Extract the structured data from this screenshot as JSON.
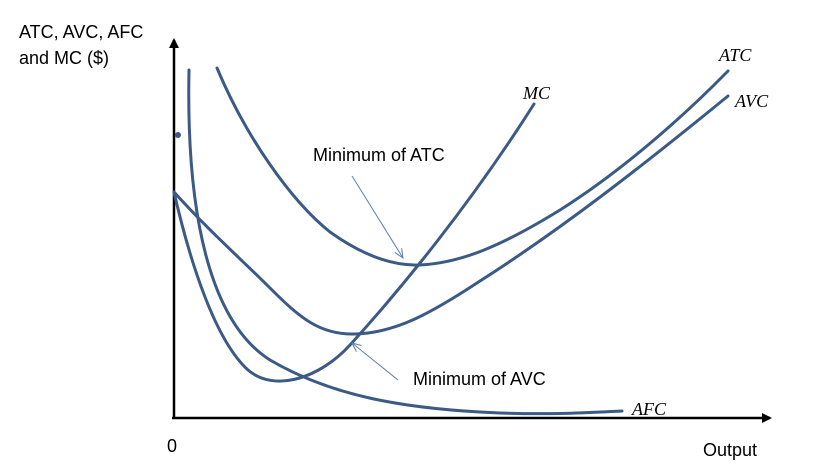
{
  "chart_data": {
    "type": "line",
    "ylabel_line1": "ATC, AVC, AFC",
    "ylabel_line2": "and MC ($)",
    "xlabel": "Output",
    "origin_label": "0",
    "grid": false,
    "series": [
      {
        "name": "MC",
        "color": "#3b5a86"
      },
      {
        "name": "ATC",
        "color": "#3b5a86"
      },
      {
        "name": "AVC",
        "color": "#3b5a86"
      },
      {
        "name": "AFC",
        "color": "#3b5a86"
      }
    ],
    "annotations": [
      {
        "text": "Minimum of ATC",
        "target": "ATC"
      },
      {
        "text": "Minimum of AVC",
        "target": "AVC"
      }
    ]
  }
}
